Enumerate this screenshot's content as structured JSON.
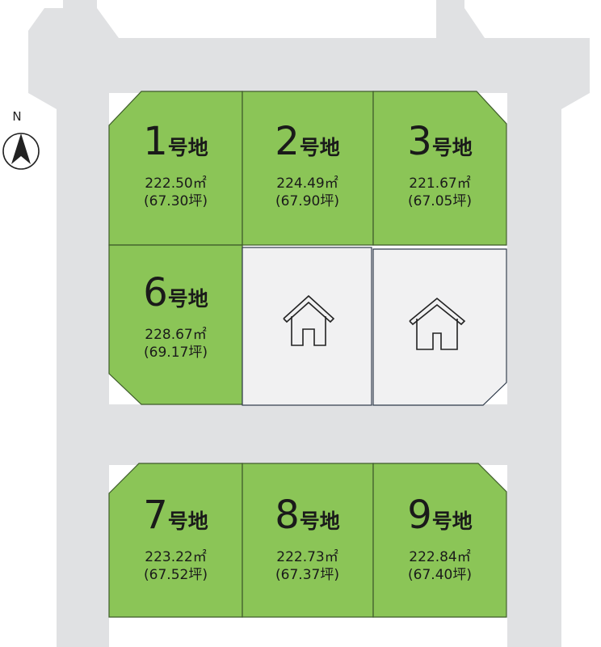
{
  "map": {
    "colors": {
      "road": "#e0e1e3",
      "lot": "#8bc557",
      "lot_border": "#3d5a2a",
      "house_lot": "#f1f1f2",
      "house_border": "#2e3a4a"
    },
    "north": {
      "label": "N",
      "icon": "north-arrow-icon"
    },
    "lots": [
      {
        "number": "1",
        "suffix": "号地",
        "area_m2": "222.50㎡",
        "area_tsubo": "(67.30坪)"
      },
      {
        "number": "2",
        "suffix": "号地",
        "area_m2": "224.49㎡",
        "area_tsubo": "(67.90坪)"
      },
      {
        "number": "3",
        "suffix": "号地",
        "area_m2": "221.67㎡",
        "area_tsubo": "(67.05坪)"
      },
      {
        "number": "6",
        "suffix": "号地",
        "area_m2": "228.67㎡",
        "area_tsubo": "(69.17坪)"
      },
      {
        "number": "7",
        "suffix": "号地",
        "area_m2": "223.22㎡",
        "area_tsubo": "(67.52坪)"
      },
      {
        "number": "8",
        "suffix": "号地",
        "area_m2": "222.73㎡",
        "area_tsubo": "(67.37坪)"
      },
      {
        "number": "9",
        "suffix": "号地",
        "area_m2": "222.84㎡",
        "area_tsubo": "(67.40坪)"
      }
    ],
    "built_lots": [
      {
        "icon": "house-icon"
      },
      {
        "icon": "house-icon"
      }
    ]
  }
}
